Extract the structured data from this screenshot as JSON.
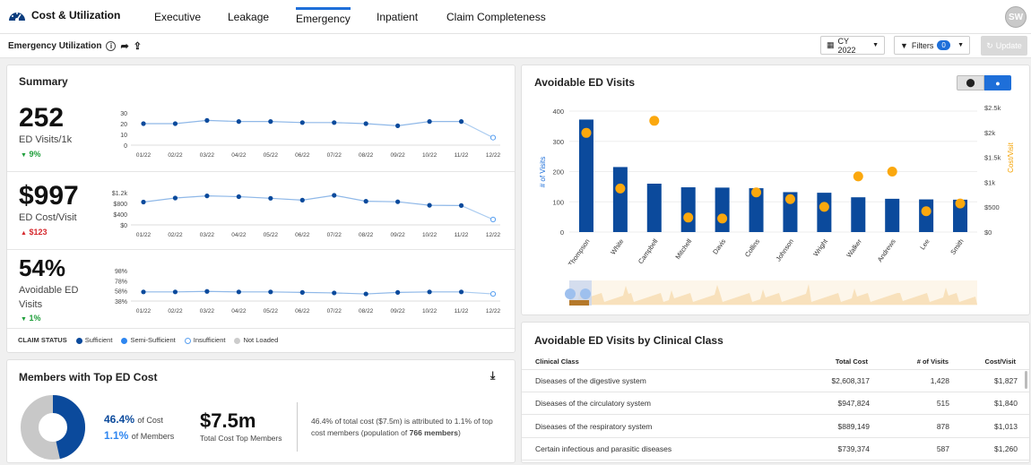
{
  "app": {
    "title": "Cost & Utilization",
    "avatar_initials": "SW"
  },
  "nav": {
    "tabs": [
      "Executive",
      "Leakage",
      "Emergency",
      "Inpatient",
      "Claim Completeness"
    ],
    "active": "Emergency"
  },
  "page": {
    "title": "Emergency Utilization"
  },
  "controls": {
    "period": "CY 2022",
    "filters_label": "Filters",
    "filters_count": "0",
    "update_label": "Update"
  },
  "summary": {
    "title": "Summary",
    "months": [
      "01/22",
      "02/22",
      "03/22",
      "04/22",
      "05/22",
      "06/22",
      "07/22",
      "08/22",
      "09/22",
      "10/22",
      "11/22",
      "12/22"
    ],
    "metrics": [
      {
        "value": "252",
        "label": "ED Visits/1k",
        "change": "9%",
        "direction": "down",
        "yticks": [
          "30",
          "20",
          "10",
          "0"
        ]
      },
      {
        "value": "$997",
        "label": "ED Cost/Visit",
        "change": "$123",
        "direction": "up",
        "yticks": [
          "$1.2k",
          "$800",
          "$400",
          "$0"
        ]
      },
      {
        "value": "54%",
        "label": "Avoidable ED Visits",
        "change": "1%",
        "direction": "down",
        "yticks": [
          "98%",
          "78%",
          "58%",
          "38%"
        ]
      }
    ],
    "claim_status": {
      "label": "CLAIM STATUS",
      "items": [
        "Sufficient",
        "Semi-Sufficient",
        "Insufficient",
        "Not Loaded"
      ]
    }
  },
  "chart_data": [
    {
      "type": "line",
      "series": [
        {
          "values": [
            20,
            20,
            23,
            22,
            22,
            21,
            21,
            20,
            18,
            22,
            22,
            7
          ]
        }
      ],
      "categories": [
        "01/22",
        "02/22",
        "03/22",
        "04/22",
        "05/22",
        "06/22",
        "07/22",
        "08/22",
        "09/22",
        "10/22",
        "11/22",
        "12/22"
      ],
      "ylim": [
        0,
        30
      ]
    },
    {
      "type": "line",
      "series": [
        {
          "values": [
            850,
            1000,
            1080,
            1050,
            990,
            920,
            1100,
            880,
            860,
            730,
            720,
            200
          ]
        }
      ],
      "categories": [
        "01/22",
        "02/22",
        "03/22",
        "04/22",
        "05/22",
        "06/22",
        "07/22",
        "08/22",
        "09/22",
        "10/22",
        "11/22",
        "12/22"
      ],
      "ylim": [
        0,
        1200
      ]
    },
    {
      "type": "line",
      "series": [
        {
          "values": [
            56,
            56,
            57,
            56,
            56,
            55,
            54,
            52,
            55,
            56,
            56,
            52
          ]
        }
      ],
      "categories": [
        "01/22",
        "02/22",
        "03/22",
        "04/22",
        "05/22",
        "06/22",
        "07/22",
        "08/22",
        "09/22",
        "10/22",
        "11/22",
        "12/22"
      ],
      "ylim": [
        38,
        98
      ]
    },
    {
      "type": "bar",
      "title": "Avoidable ED Visits",
      "categories": [
        "Thompson",
        "White",
        "Campbell",
        "Mitchell",
        "Davis",
        "Collins",
        "Johnson",
        "Wright",
        "Walker",
        "Andrews",
        "Lee",
        "Smith"
      ],
      "series": [
        {
          "values": [
            372,
            215,
            160,
            148,
            147,
            145,
            132,
            130,
            115,
            110,
            108,
            107
          ]
        },
        {
          "values": [
            2050,
            900,
            2300,
            300,
            280,
            820,
            680,
            520,
            1150,
            1250,
            430,
            590
          ]
        }
      ],
      "ylabel": "# of Visits",
      "y2label": "Cost/Visit",
      "yticks": [
        "400",
        "300",
        "200",
        "100",
        "0"
      ],
      "y2ticks": [
        "$2.5k",
        "$2k",
        "$1.5k",
        "$1k",
        "$500",
        "$0"
      ],
      "ylim": [
        0,
        400
      ],
      "y2lim": [
        0,
        2500
      ]
    }
  ],
  "members": {
    "title": "Members with Top ED Cost",
    "cost_pct": "46.4%",
    "cost_lbl": "of Cost",
    "members_pct": "1.1%",
    "members_lbl": "of Members",
    "total": "$7.5m",
    "total_lbl": "Total Cost Top Members",
    "note_a": "46.4% of total cost ($7.5m) is attributed to 1.1% of top cost members (population of ",
    "note_b": "766 members",
    "note_c": ")"
  },
  "classes": {
    "title": "Avoidable ED Visits by Clinical Class",
    "headers": [
      "Clinical Class",
      "Total Cost",
      "# of Visits",
      "Cost/Visit"
    ],
    "rows": [
      [
        "Diseases of the digestive system",
        "$2,608,317",
        "1,428",
        "$1,827"
      ],
      [
        "Diseases of the circulatory system",
        "$947,824",
        "515",
        "$1,840"
      ],
      [
        "Diseases of the respiratory system",
        "$889,149",
        "878",
        "$1,013"
      ],
      [
        "Certain infectious and parasitic diseases",
        "$739,374",
        "587",
        "$1,260"
      ]
    ]
  }
}
